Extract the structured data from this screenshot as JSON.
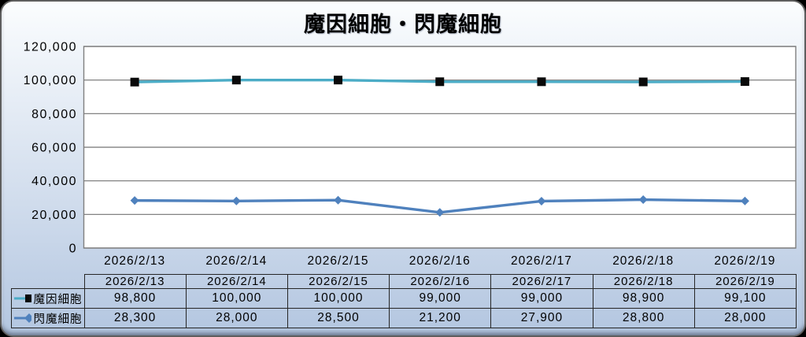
{
  "title": "魔因細胞・閃魔細胞",
  "chart_data": {
    "type": "line",
    "title": "魔因細胞・閃魔細胞",
    "categories": [
      "2026/2/13",
      "2026/2/14",
      "2026/2/15",
      "2026/2/16",
      "2026/2/17",
      "2026/2/18",
      "2026/2/19"
    ],
    "series": [
      {
        "name": "魔因細胞",
        "values": [
          98800,
          100000,
          100000,
          99000,
          99000,
          98900,
          99100
        ],
        "line_color": "#4bacc6",
        "marker": "square",
        "marker_color": "#0a0a0a"
      },
      {
        "name": "閃魔細胞",
        "values": [
          28300,
          28000,
          28500,
          21200,
          27900,
          28800,
          28000
        ],
        "line_color": "#4f81bd",
        "marker": "diamond",
        "marker_color": "#4f81bd"
      }
    ],
    "ylim": [
      0,
      120000
    ],
    "ytick_step": 20000,
    "ytick_labels": [
      "0",
      "20,000",
      "40,000",
      "60,000",
      "80,000",
      "100,000",
      "120,000"
    ],
    "grid": true,
    "gridline_color": "#737373",
    "plot_bg": "#ffffff",
    "plot_border_color": "#7f7f7f",
    "legend_position": "data-table-left",
    "data_table": {
      "header": [
        "2026/2/13",
        "2026/2/14",
        "2026/2/15",
        "2026/2/16",
        "2026/2/17",
        "2026/2/18",
        "2026/2/19"
      ],
      "rows": [
        {
          "label": "魔因細胞",
          "values": [
            "98,800",
            "100,000",
            "100,000",
            "99,000",
            "99,000",
            "98,900",
            "99,100"
          ]
        },
        {
          "label": "閃魔細胞",
          "values": [
            "28,300",
            "28,000",
            "28,500",
            "21,200",
            "27,900",
            "28,800",
            "28,000"
          ]
        }
      ]
    }
  }
}
